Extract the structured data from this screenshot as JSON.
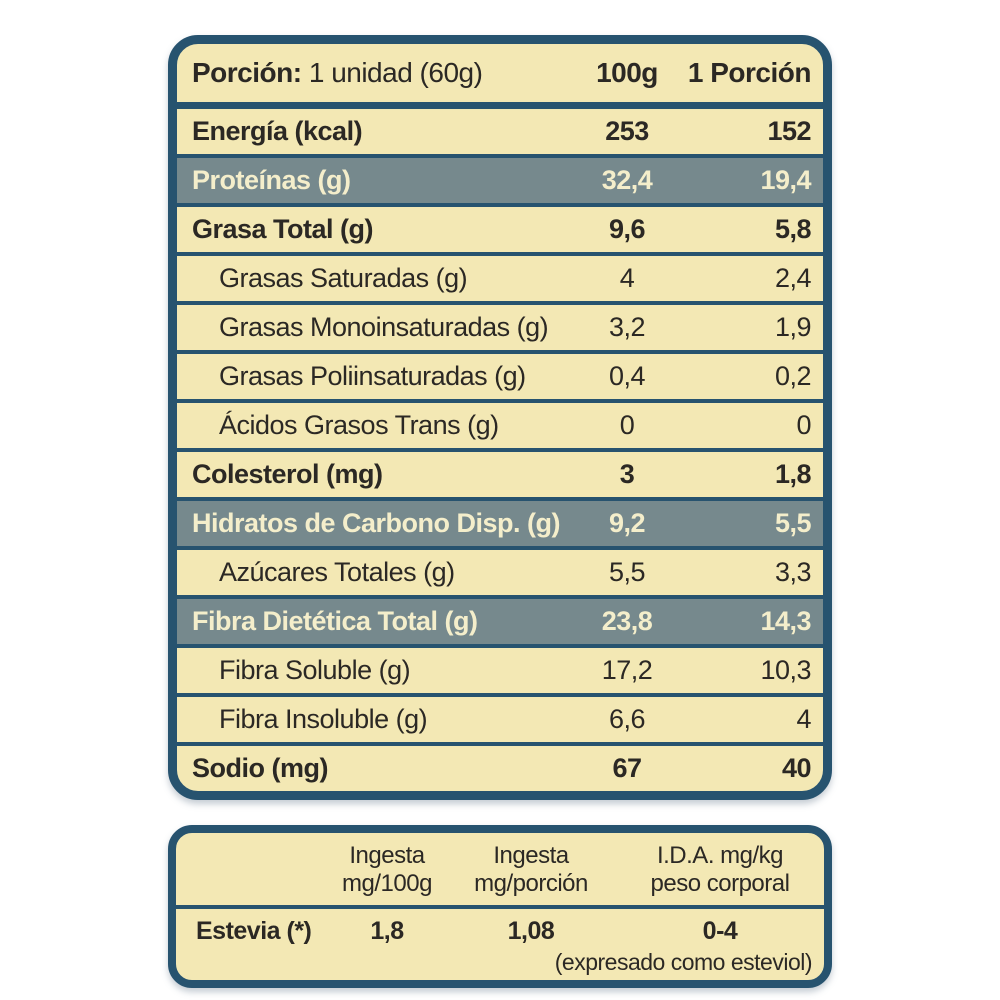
{
  "colors": {
    "border_navy": "#27536f",
    "cream_background": "#f3e8b4",
    "highlight_slate": "#76898d",
    "text_dark": "#2b2824",
    "text_cream": "#f4eecb",
    "page_background": "#ffffff"
  },
  "nutrition_table": {
    "header": {
      "portion_label": "Porción:",
      "portion_value": " 1 unidad (60g)",
      "col_100g": "100g",
      "col_portion": "1 Porción"
    },
    "rows": [
      {
        "label": "Energía (kcal)",
        "v100": "253",
        "vporcion": "152",
        "style": "section"
      },
      {
        "label": "Proteínas (g)",
        "v100": "32,4",
        "vporcion": "19,4",
        "style": "highlight"
      },
      {
        "label": "Grasa Total (g)",
        "v100": "9,6",
        "vporcion": "5,8",
        "style": "section"
      },
      {
        "label": "Grasas Saturadas (g)",
        "v100": "4",
        "vporcion": "2,4",
        "style": "sub"
      },
      {
        "label": "Grasas Monoinsaturadas (g)",
        "v100": "3,2",
        "vporcion": "1,9",
        "style": "sub"
      },
      {
        "label": "Grasas Poliinsaturadas (g)",
        "v100": "0,4",
        "vporcion": "0,2",
        "style": "sub"
      },
      {
        "label": "Ácidos Grasos Trans (g)",
        "v100": "0",
        "vporcion": "0",
        "style": "sub"
      },
      {
        "label": "Colesterol (mg)",
        "v100": "3",
        "vporcion": "1,8",
        "style": "section"
      },
      {
        "label": "Hidratos de Carbono Disp. (g)",
        "v100": "9,2",
        "vporcion": "5,5",
        "style": "highlight"
      },
      {
        "label": "Azúcares Totales (g)",
        "v100": "5,5",
        "vporcion": "3,3",
        "style": "sub"
      },
      {
        "label": "Fibra Dietética Total (g)",
        "v100": "23,8",
        "vporcion": "14,3",
        "style": "highlight"
      },
      {
        "label": "Fibra Soluble (g)",
        "v100": "17,2",
        "vporcion": "10,3",
        "style": "sub"
      },
      {
        "label": "Fibra Insoluble (g)",
        "v100": "6,6",
        "vporcion": "4",
        "style": "sub"
      },
      {
        "label": "Sodio (mg)",
        "v100": "67",
        "vporcion": "40",
        "style": "section"
      }
    ]
  },
  "sweetener_table": {
    "headers": {
      "col_a_line1": "Ingesta",
      "col_a_line2": "mg/100g",
      "col_b_line1": "Ingesta",
      "col_b_line2": "mg/porción",
      "col_c_line1": "I.D.A. mg/kg",
      "col_c_line2": "peso corporal"
    },
    "row": {
      "label": "Estevia (*)",
      "v100": "1,8",
      "vporcion": "1,08",
      "ida": "0-4",
      "ida_note": "(expresado como esteviol)"
    }
  }
}
